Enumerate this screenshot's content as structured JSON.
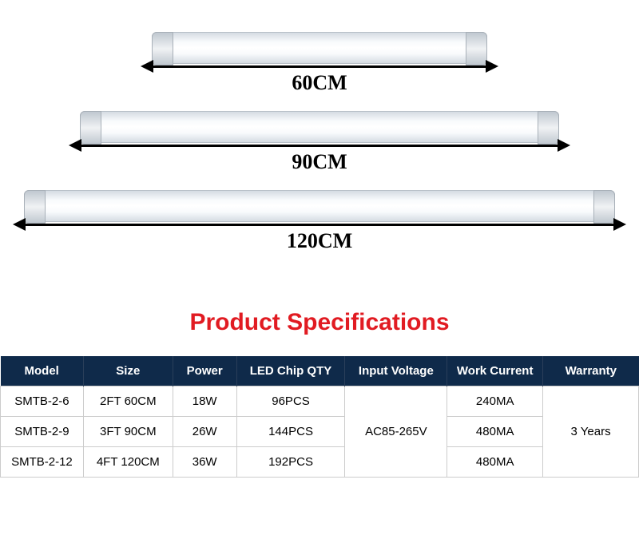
{
  "colors": {
    "title_color": "#e11b22",
    "header_bg": "#0f2a4a",
    "header_text": "#ffffff",
    "border_color": "#cccccc",
    "arrow_color": "#000000"
  },
  "tubes": [
    {
      "label": "60CM",
      "width_class": "tube-60",
      "arrow_class": "arrow-60"
    },
    {
      "label": "90CM",
      "width_class": "tube-90",
      "arrow_class": "arrow-90"
    },
    {
      "label": "120CM",
      "width_class": "tube-120",
      "arrow_class": "arrow-120"
    }
  ],
  "section_title": "Product Specifications",
  "table": {
    "headers": {
      "model": "Model",
      "size": "Size",
      "power": "Power",
      "chip": "LED Chip QTY",
      "voltage": "Input Voltage",
      "current": "Work Current",
      "warranty": "Warranty"
    },
    "rows": [
      {
        "model": "SMTB-2-6",
        "size": "2FT 60CM",
        "power": "18W",
        "chip": "96PCS",
        "current": "240MA"
      },
      {
        "model": "SMTB-2-9",
        "size": "3FT 90CM",
        "power": "26W",
        "chip": "144PCS",
        "current": "480MA"
      },
      {
        "model": "SMTB-2-12",
        "size": "4FT 120CM",
        "power": "36W",
        "chip": "192PCS",
        "current": "480MA"
      }
    ],
    "voltage_merged": "AC85-265V",
    "warranty_merged": "3 Years"
  }
}
